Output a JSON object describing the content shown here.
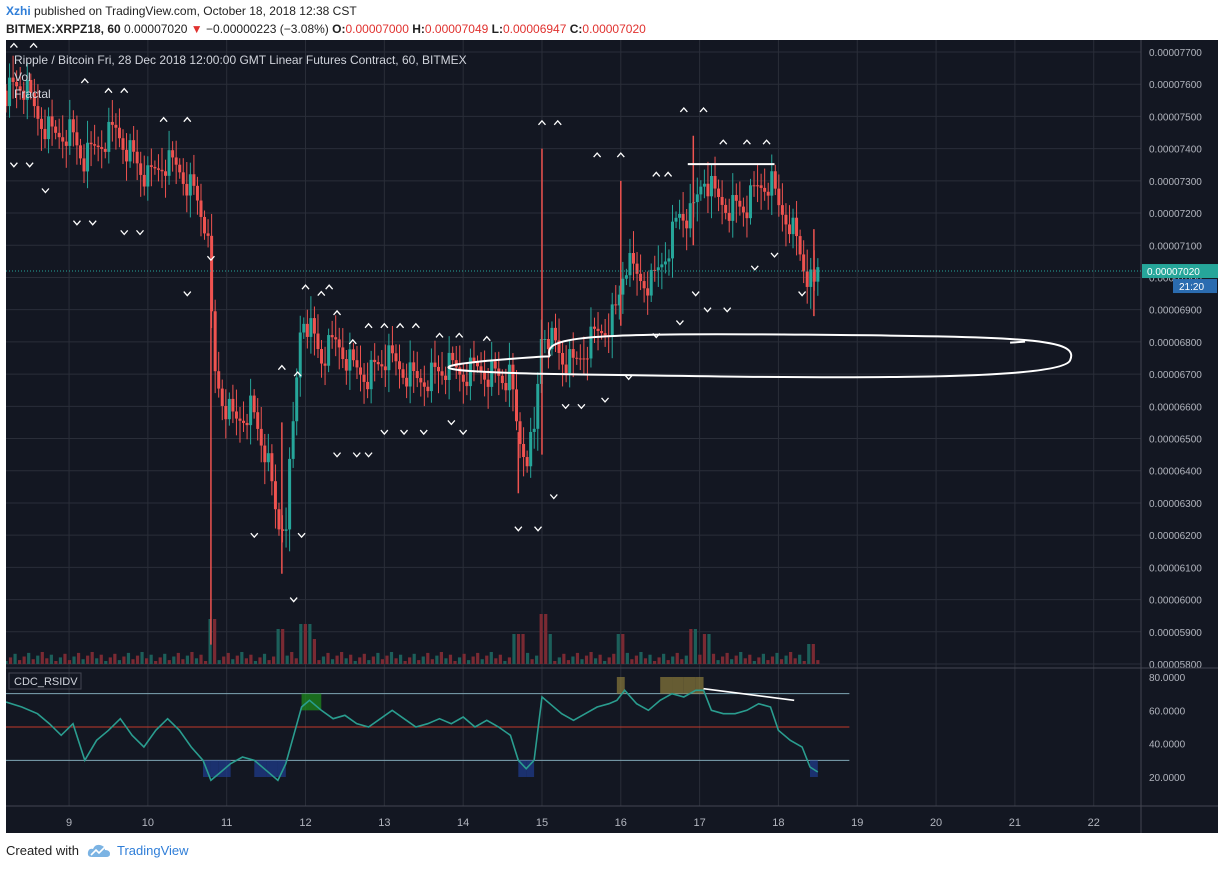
{
  "header": {
    "username": "Xzhi",
    "published": "published on TradingView.com, October 18, 2018 12:38 CST",
    "symbol": "BITMEX:XRPZ18, 60",
    "change_arrow": "▼",
    "price": "0.00007020",
    "change": "−0.00000223 (−3.08%)",
    "o_label": "O:",
    "o_value": "0.00007000",
    "h_label": "H:",
    "h_value": "0.00007049",
    "l_label": "L:",
    "l_value": "0.00006947",
    "c_label": "C:",
    "c_value": "0.00007020"
  },
  "footer": {
    "created_with": "Created with",
    "brand": "TradingView",
    "logo_icon": "tradingview-cloud-icon"
  },
  "chart_data": {
    "type": "candlestick",
    "title": "Ripple / Bitcoin Fri, 28 Dec 2018 12:00:00 GMT Linear Futures Contract, 60, BITMEX",
    "legend": [
      "Vol",
      "Fractal"
    ],
    "x_ticks": [
      9,
      10,
      11,
      12,
      13,
      14,
      15,
      16,
      17,
      18,
      19,
      20,
      21,
      22
    ],
    "x_range": [
      8.2,
      22.6
    ],
    "ylim": [
      5.8e-06,
      7.8e-06
    ],
    "y_ticks": [
      "0.00007700",
      "0.00007600",
      "0.00007500",
      "0.00007400",
      "0.00007300",
      "0.00007200",
      "0.00007100",
      "0.00007000",
      "0.00006900",
      "0.00006800",
      "0.00006700",
      "0.00006600",
      "0.00006500",
      "0.00006400",
      "0.00006300",
      "0.00006200",
      "0.00006100",
      "0.00006000",
      "0.00005900",
      "0.00005800"
    ],
    "last_price_label": "0.00007020",
    "last_price": 7.02e-05,
    "countdown_label": "21:20",
    "price_path": [
      [
        8.2,
        7.58
      ],
      [
        8.4,
        7.6
      ],
      [
        8.6,
        7.5
      ],
      [
        8.8,
        7.44
      ],
      [
        9.0,
        7.46
      ],
      [
        9.2,
        7.36
      ],
      [
        9.4,
        7.42
      ],
      [
        9.6,
        7.46
      ],
      [
        9.8,
        7.38
      ],
      [
        10.0,
        7.3
      ],
      [
        10.2,
        7.36
      ],
      [
        10.4,
        7.34
      ],
      [
        10.6,
        7.26
      ],
      [
        10.75,
        7.15
      ],
      [
        10.8,
        6.9
      ],
      [
        10.85,
        6.7
      ],
      [
        10.95,
        6.62
      ],
      [
        11.1,
        6.55
      ],
      [
        11.3,
        6.6
      ],
      [
        11.5,
        6.45
      ],
      [
        11.65,
        6.22
      ],
      [
        11.75,
        6.25
      ],
      [
        11.85,
        6.55
      ],
      [
        11.95,
        6.9
      ],
      [
        12.05,
        6.85
      ],
      [
        12.2,
        6.75
      ],
      [
        12.4,
        6.8
      ],
      [
        12.6,
        6.72
      ],
      [
        12.8,
        6.7
      ],
      [
        13.0,
        6.75
      ],
      [
        13.2,
        6.72
      ],
      [
        13.4,
        6.68
      ],
      [
        13.6,
        6.7
      ],
      [
        13.8,
        6.72
      ],
      [
        14.0,
        6.7
      ],
      [
        14.2,
        6.72
      ],
      [
        14.4,
        6.7
      ],
      [
        14.6,
        6.68
      ],
      [
        14.7,
        6.5
      ],
      [
        14.8,
        6.45
      ],
      [
        14.9,
        6.5
      ],
      [
        15.0,
        6.85
      ],
      [
        15.1,
        6.82
      ],
      [
        15.25,
        6.75
      ],
      [
        15.4,
        6.72
      ],
      [
        15.6,
        6.8
      ],
      [
        15.8,
        6.85
      ],
      [
        15.95,
        6.9
      ],
      [
        16.05,
        7.05
      ],
      [
        16.2,
        7.0
      ],
      [
        16.4,
        6.98
      ],
      [
        16.6,
        7.1
      ],
      [
        16.75,
        7.2
      ],
      [
        16.9,
        7.18
      ],
      [
        17.05,
        7.32
      ],
      [
        17.2,
        7.25
      ],
      [
        17.4,
        7.22
      ],
      [
        17.6,
        7.22
      ],
      [
        17.75,
        7.28
      ],
      [
        17.9,
        7.3
      ],
      [
        18.0,
        7.22
      ],
      [
        18.15,
        7.18
      ],
      [
        18.3,
        7.05
      ],
      [
        18.45,
        6.95
      ],
      [
        18.5,
        7.02
      ]
    ],
    "volume_bars": {
      "x_start": 8.2,
      "x_end": 18.5,
      "count": 180,
      "spikes": [
        [
          10.8,
          9
        ],
        [
          11.7,
          7
        ],
        [
          12.0,
          8
        ],
        [
          12.1,
          5
        ],
        [
          14.7,
          6
        ],
        [
          15.0,
          10
        ],
        [
          15.1,
          6
        ],
        [
          16.0,
          6
        ],
        [
          16.9,
          7
        ],
        [
          17.1,
          6
        ],
        [
          18.4,
          4
        ]
      ]
    },
    "rsi": {
      "indicator": "CDC_RSIDV",
      "ylim": [
        12,
        83
      ],
      "y_ticks": [
        "80.0000",
        "60.0000",
        "40.0000",
        "20.0000"
      ],
      "levels": [
        70,
        50,
        30
      ],
      "series": [
        [
          8.2,
          65
        ],
        [
          8.4,
          62
        ],
        [
          8.6,
          58
        ],
        [
          8.75,
          52
        ],
        [
          8.9,
          45
        ],
        [
          9.05,
          52
        ],
        [
          9.2,
          30
        ],
        [
          9.35,
          42
        ],
        [
          9.5,
          48
        ],
        [
          9.65,
          55
        ],
        [
          9.8,
          45
        ],
        [
          9.95,
          38
        ],
        [
          10.1,
          48
        ],
        [
          10.25,
          55
        ],
        [
          10.4,
          48
        ],
        [
          10.55,
          38
        ],
        [
          10.7,
          30
        ],
        [
          10.8,
          18
        ],
        [
          10.9,
          22
        ],
        [
          11.05,
          28
        ],
        [
          11.2,
          32
        ],
        [
          11.35,
          30
        ],
        [
          11.5,
          24
        ],
        [
          11.65,
          18
        ],
        [
          11.75,
          28
        ],
        [
          11.85,
          45
        ],
        [
          11.95,
          62
        ],
        [
          12.05,
          66
        ],
        [
          12.2,
          60
        ],
        [
          12.35,
          55
        ],
        [
          12.5,
          57
        ],
        [
          12.65,
          52
        ],
        [
          12.8,
          50
        ],
        [
          12.95,
          55
        ],
        [
          13.1,
          60
        ],
        [
          13.25,
          55
        ],
        [
          13.4,
          50
        ],
        [
          13.55,
          52
        ],
        [
          13.7,
          55
        ],
        [
          13.85,
          52
        ],
        [
          14.0,
          56
        ],
        [
          14.15,
          50
        ],
        [
          14.3,
          54
        ],
        [
          14.45,
          50
        ],
        [
          14.6,
          45
        ],
        [
          14.7,
          30
        ],
        [
          14.8,
          25
        ],
        [
          14.9,
          30
        ],
        [
          15.0,
          68
        ],
        [
          15.1,
          64
        ],
        [
          15.25,
          58
        ],
        [
          15.4,
          54
        ],
        [
          15.55,
          58
        ],
        [
          15.7,
          62
        ],
        [
          15.85,
          64
        ],
        [
          15.95,
          66
        ],
        [
          16.05,
          72
        ],
        [
          16.2,
          64
        ],
        [
          16.35,
          60
        ],
        [
          16.5,
          66
        ],
        [
          16.65,
          70
        ],
        [
          16.8,
          68
        ],
        [
          16.95,
          72
        ],
        [
          17.05,
          72
        ],
        [
          17.15,
          60
        ],
        [
          17.3,
          58
        ],
        [
          17.45,
          58
        ],
        [
          17.6,
          60
        ],
        [
          17.75,
          64
        ],
        [
          17.9,
          62
        ],
        [
          18.0,
          48
        ],
        [
          18.15,
          42
        ],
        [
          18.3,
          38
        ],
        [
          18.4,
          26
        ],
        [
          18.5,
          23
        ]
      ],
      "trendline": [
        [
          17.05,
          73
        ],
        [
          18.2,
          66
        ]
      ]
    },
    "annotations": {
      "resistance_line": {
        "x": [
          16.85,
          17.95
        ],
        "price": 7.352e-05
      },
      "support_ellipse": {
        "x": [
          15.0,
          21.7
        ],
        "price": [
          6.81e-05,
          6.7e-05
        ]
      }
    },
    "fractals": {
      "up": [
        [
          8.3,
          7.72
        ],
        [
          8.55,
          7.72
        ],
        [
          9.2,
          7.61
        ],
        [
          9.5,
          7.58
        ],
        [
          9.7,
          7.58
        ],
        [
          10.2,
          7.49
        ],
        [
          10.5,
          7.49
        ],
        [
          12.0,
          6.97
        ],
        [
          12.3,
          6.97
        ],
        [
          12.4,
          6.89
        ],
        [
          12.6,
          6.8
        ],
        [
          12.8,
          6.85
        ],
        [
          13.0,
          6.85
        ],
        [
          13.2,
          6.85
        ],
        [
          13.4,
          6.85
        ],
        [
          13.7,
          6.82
        ],
        [
          13.95,
          6.82
        ],
        [
          14.3,
          6.81
        ],
        [
          15.0,
          7.48
        ],
        [
          15.2,
          7.48
        ],
        [
          15.7,
          7.38
        ],
        [
          16.0,
          7.38
        ],
        [
          16.45,
          7.32
        ],
        [
          16.6,
          7.32
        ],
        [
          16.8,
          7.52
        ],
        [
          17.05,
          7.52
        ],
        [
          17.3,
          7.42
        ],
        [
          17.6,
          7.42
        ],
        [
          17.85,
          7.42
        ],
        [
          11.7,
          6.72
        ],
        [
          11.9,
          6.7
        ],
        [
          12.2,
          6.95
        ]
      ],
      "down": [
        [
          8.3,
          7.35
        ],
        [
          8.5,
          7.35
        ],
        [
          8.7,
          7.27
        ],
        [
          9.1,
          7.17
        ],
        [
          9.3,
          7.17
        ],
        [
          9.7,
          7.14
        ],
        [
          9.9,
          7.14
        ],
        [
          10.5,
          6.95
        ],
        [
          10.8,
          7.06
        ],
        [
          11.35,
          6.2
        ],
        [
          11.85,
          6.0
        ],
        [
          11.95,
          6.2
        ],
        [
          12.4,
          6.45
        ],
        [
          12.65,
          6.45
        ],
        [
          12.8,
          6.45
        ],
        [
          13.0,
          6.52
        ],
        [
          13.25,
          6.52
        ],
        [
          13.5,
          6.52
        ],
        [
          13.85,
          6.55
        ],
        [
          14.0,
          6.52
        ],
        [
          14.7,
          6.22
        ],
        [
          14.95,
          6.22
        ],
        [
          15.15,
          6.32
        ],
        [
          15.3,
          6.6
        ],
        [
          15.5,
          6.6
        ],
        [
          15.8,
          6.62
        ],
        [
          16.1,
          6.69
        ],
        [
          16.45,
          6.82
        ],
        [
          16.75,
          6.86
        ],
        [
          16.95,
          6.95
        ],
        [
          17.1,
          6.9
        ],
        [
          17.35,
          6.9
        ],
        [
          17.7,
          7.03
        ],
        [
          17.95,
          7.07
        ],
        [
          18.3,
          6.95
        ]
      ]
    }
  }
}
